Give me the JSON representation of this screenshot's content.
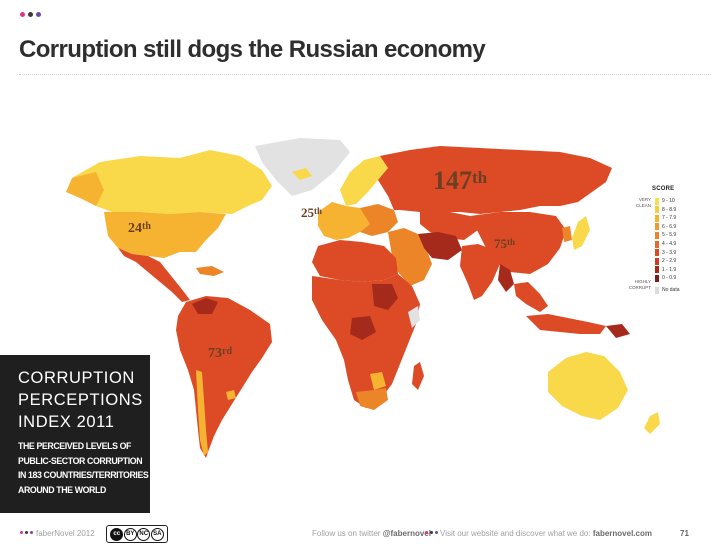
{
  "header": {
    "title": "Corruption still dogs the Russian economy",
    "dot_colors": [
      "#e0348a",
      "#3a3a3a",
      "#6d4aa5"
    ]
  },
  "map": {
    "labels": {
      "usa": {
        "num": "24",
        "suffix": "th"
      },
      "europe": {
        "num": "25",
        "suffix": "th"
      },
      "russia": {
        "num": "147",
        "suffix": "th"
      },
      "china": {
        "num": "75",
        "suffix": "th"
      },
      "brazil": {
        "num": "73",
        "suffix": "rd"
      }
    },
    "legend": {
      "title": "SCORE",
      "top_caption": "VERY CLEAN",
      "bottom_caption": "HIGHLY CORRUPT",
      "items": [
        {
          "label": "9 - 10",
          "color": "#f9e04a"
        },
        {
          "label": "8 - 8.9",
          "color": "#f8cc3c"
        },
        {
          "label": "7 - 7.9",
          "color": "#f6b332"
        },
        {
          "label": "6 - 6.9",
          "color": "#f09a2c"
        },
        {
          "label": "5 - 5.9",
          "color": "#ec8428"
        },
        {
          "label": "4 - 4.9",
          "color": "#e56b26"
        },
        {
          "label": "3 - 3.9",
          "color": "#de4c24"
        },
        {
          "label": "2 - 2.9",
          "color": "#d23a22"
        },
        {
          "label": "1 - 1.9",
          "color": "#a52a1c"
        },
        {
          "label": "0 - 0.9",
          "color": "#7a1e16"
        },
        {
          "label": "No data",
          "color": "#dcdcdc"
        }
      ]
    },
    "colors": {
      "very_clean": "#f9d84a",
      "clean": "#f6b332",
      "mid": "#ec8428",
      "corrupt": "#dc4a26",
      "very_corrupt": "#a52a1c",
      "no_data": "#e0e0e0"
    }
  },
  "index_box": {
    "heading": [
      "CORRUPTION",
      "PERCEPTIONS",
      "INDEX 2011"
    ],
    "subtitle": [
      "THE PERCEIVED LEVELS OF",
      "PUBLIC-SECTOR CORRUPTION",
      "IN 183 COUNTRIES/TERRITORIES",
      "AROUND THE WORLD"
    ]
  },
  "footer": {
    "left_text": "faberNovel 2012",
    "license": [
      "cc",
      "BY",
      "NC",
      "SA"
    ],
    "twitter_prefix": "Follow us on twitter ",
    "twitter_handle": "@fabernovel",
    "site_prefix": "Visit our website and discover what we do: ",
    "site": "fabernovel.com",
    "page_number": "71"
  }
}
